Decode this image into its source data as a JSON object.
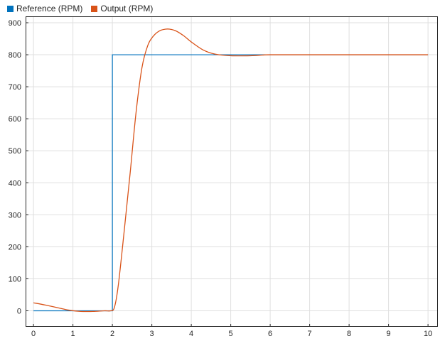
{
  "chart_data": {
    "type": "line",
    "title": "",
    "xlabel": "",
    "ylabel": "",
    "xlim": [
      -0.2,
      10.25
    ],
    "ylim": [
      -50,
      920
    ],
    "xticks": [
      0,
      1,
      2,
      3,
      4,
      5,
      6,
      7,
      8,
      9,
      10
    ],
    "yticks": [
      0,
      100,
      200,
      300,
      400,
      500,
      600,
      700,
      800,
      900
    ],
    "grid": true,
    "legend_placement": "top-left",
    "series": [
      {
        "name": "Reference (RPM)",
        "color": "#0072BD",
        "x": [
          0,
          2,
          2,
          10
        ],
        "y": [
          0,
          0,
          800,
          800
        ]
      },
      {
        "name": "Output (RPM)",
        "color": "#D95319",
        "x": [
          0,
          0.3,
          0.6,
          0.9,
          1.2,
          1.5,
          1.8,
          1.95,
          2.05,
          2.15,
          2.3,
          2.45,
          2.6,
          2.75,
          2.9,
          3.05,
          3.2,
          3.35,
          3.45,
          3.6,
          3.8,
          4.0,
          4.3,
          4.6,
          5.0,
          5.5,
          5.8,
          6.0,
          7.0,
          8.0,
          9.0,
          10.0
        ],
        "y": [
          25,
          18,
          10,
          2,
          -2,
          -2,
          0,
          0,
          10,
          80,
          250,
          430,
          620,
          760,
          830,
          860,
          875,
          880,
          880,
          875,
          860,
          840,
          815,
          802,
          797,
          797,
          799,
          800,
          800,
          800,
          800,
          800
        ]
      }
    ]
  }
}
